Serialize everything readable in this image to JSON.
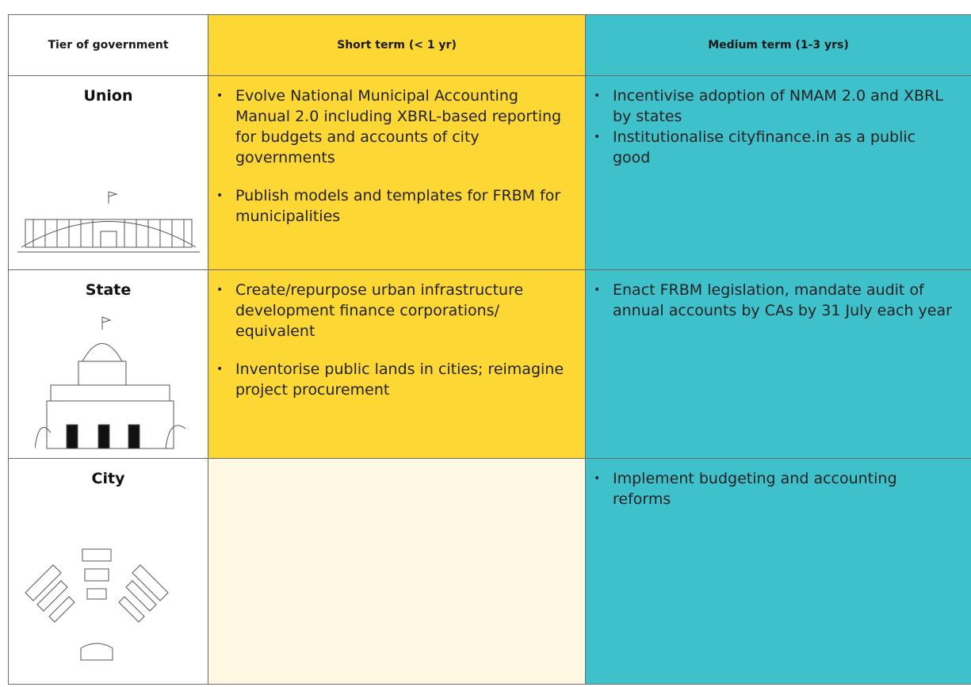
{
  "table": {
    "header": [
      "Tier of government",
      "Short term (< 1 yr)",
      "Medium term (1-3 yrs)"
    ],
    "rows": [
      {
        "tier": "Union",
        "short": [
          "Evolve National Municipal Accounting Manual 2.0 including XBRL-based reporting for budgets and accounts of city governments",
          "Publish models and templates for FRBM for municipalities"
        ],
        "medium": [
          "Incentivise adoption of NMAM 2.0 and XBRL by states",
          "Institutionalise cityfinance.in as a public good"
        ]
      },
      {
        "tier": "State",
        "short": [
          "Create/repurpose urban infrastructure development finance corporations/ equivalent",
          "Inventorise public lands in cities; reimagine project procurement"
        ],
        "medium": [
          "Enact FRBM legislation, mandate audit of annual accounts by CAs by 31 July each year"
        ]
      },
      {
        "tier": "City",
        "short": [],
        "medium": [
          "Implement budgeting and accounting reforms"
        ]
      }
    ]
  }
}
